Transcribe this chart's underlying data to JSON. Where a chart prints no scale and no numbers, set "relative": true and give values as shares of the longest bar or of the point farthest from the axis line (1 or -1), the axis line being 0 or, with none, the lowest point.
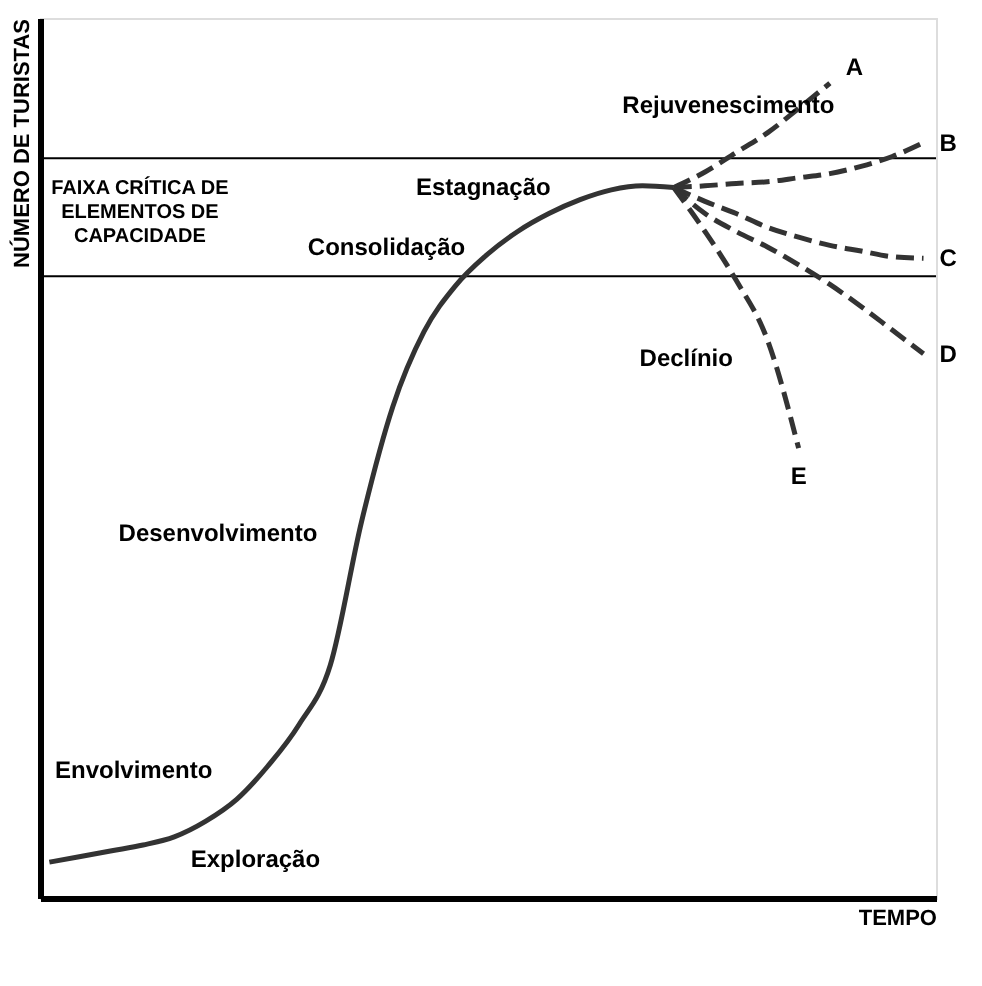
{
  "chart_data": {
    "type": "line",
    "relative": true,
    "xlabel": "TEMPO",
    "ylabel": "NÚMERO DE TURISTAS",
    "categories": [
      null,
      null,
      null,
      null,
      null,
      null,
      null,
      null,
      null,
      null,
      null,
      null,
      null,
      null,
      null,
      null,
      null,
      null,
      null,
      null,
      null,
      null,
      null,
      null,
      null,
      null,
      null,
      null,
      null
    ],
    "series": [
      {
        "color": "#333333",
        "line_style": "solid",
        "values": [
          0.044,
          0.051,
          0.058,
          0.065,
          0.075,
          0.094,
          0.121,
          0.162,
          0.213,
          0.286,
          0.462,
          0.603,
          0.695,
          0.751,
          0.789,
          0.818,
          0.84,
          0.857,
          0.869,
          0.874,
          0.872,
          null,
          null,
          null,
          null,
          null,
          null,
          null,
          null
        ]
      },
      {
        "name": "A",
        "color": "#333333",
        "line_style": "dashed",
        "values": [
          null,
          null,
          null,
          null,
          null,
          null,
          null,
          null,
          null,
          null,
          null,
          null,
          null,
          null,
          null,
          null,
          null,
          null,
          null,
          null,
          0.872,
          0.891,
          0.915,
          0.939,
          0.969,
          1,
          null,
          null,
          null
        ]
      },
      {
        "name": "B",
        "color": "#333333",
        "line_style": "dashed",
        "values": [
          null,
          null,
          null,
          null,
          null,
          null,
          null,
          null,
          null,
          null,
          null,
          null,
          null,
          null,
          null,
          null,
          null,
          null,
          null,
          null,
          0.872,
          0.874,
          0.877,
          0.879,
          0.884,
          0.889,
          0.898,
          0.91,
          0.927
        ]
      },
      {
        "name": "C",
        "color": "#333333",
        "line_style": "dashed",
        "values": [
          null,
          null,
          null,
          null,
          null,
          null,
          null,
          null,
          null,
          null,
          null,
          null,
          null,
          null,
          null,
          null,
          null,
          null,
          null,
          null,
          0.872,
          0.855,
          0.84,
          0.823,
          0.811,
          0.801,
          0.794,
          0.787,
          0.785
        ]
      },
      {
        "name": "D",
        "color": "#333333",
        "line_style": "dashed",
        "values": [
          null,
          null,
          null,
          null,
          null,
          null,
          null,
          null,
          null,
          null,
          null,
          null,
          null,
          null,
          null,
          null,
          null,
          null,
          null,
          null,
          0.872,
          0.84,
          0.818,
          0.799,
          0.777,
          0.753,
          0.726,
          0.697,
          0.668
        ]
      },
      {
        "name": "E",
        "color": "#333333",
        "line_style": "dashed",
        "values": [
          null,
          null,
          null,
          null,
          null,
          null,
          null,
          null,
          null,
          null,
          null,
          null,
          null,
          null,
          null,
          null,
          null,
          null,
          null,
          null,
          0.872,
          0.818,
          0.758,
          0.685,
          0.552,
          null,
          null,
          null,
          null
        ]
      }
    ],
    "ref_lines": [
      {
        "axis": "y",
        "value": 0.908,
        "label": "FAIXA CRÍTICA DE\nELEMENTOS DE\nCAPACIDADE",
        "color": "#000000"
      },
      {
        "axis": "y",
        "value": 0.763,
        "color": "#000000"
      }
    ],
    "annotations": [
      "Exploração",
      "Envolvimento",
      "Desenvolvimento",
      "Consolidação",
      "Estagnação",
      "Rejuvenescimento",
      "Declínio"
    ]
  }
}
